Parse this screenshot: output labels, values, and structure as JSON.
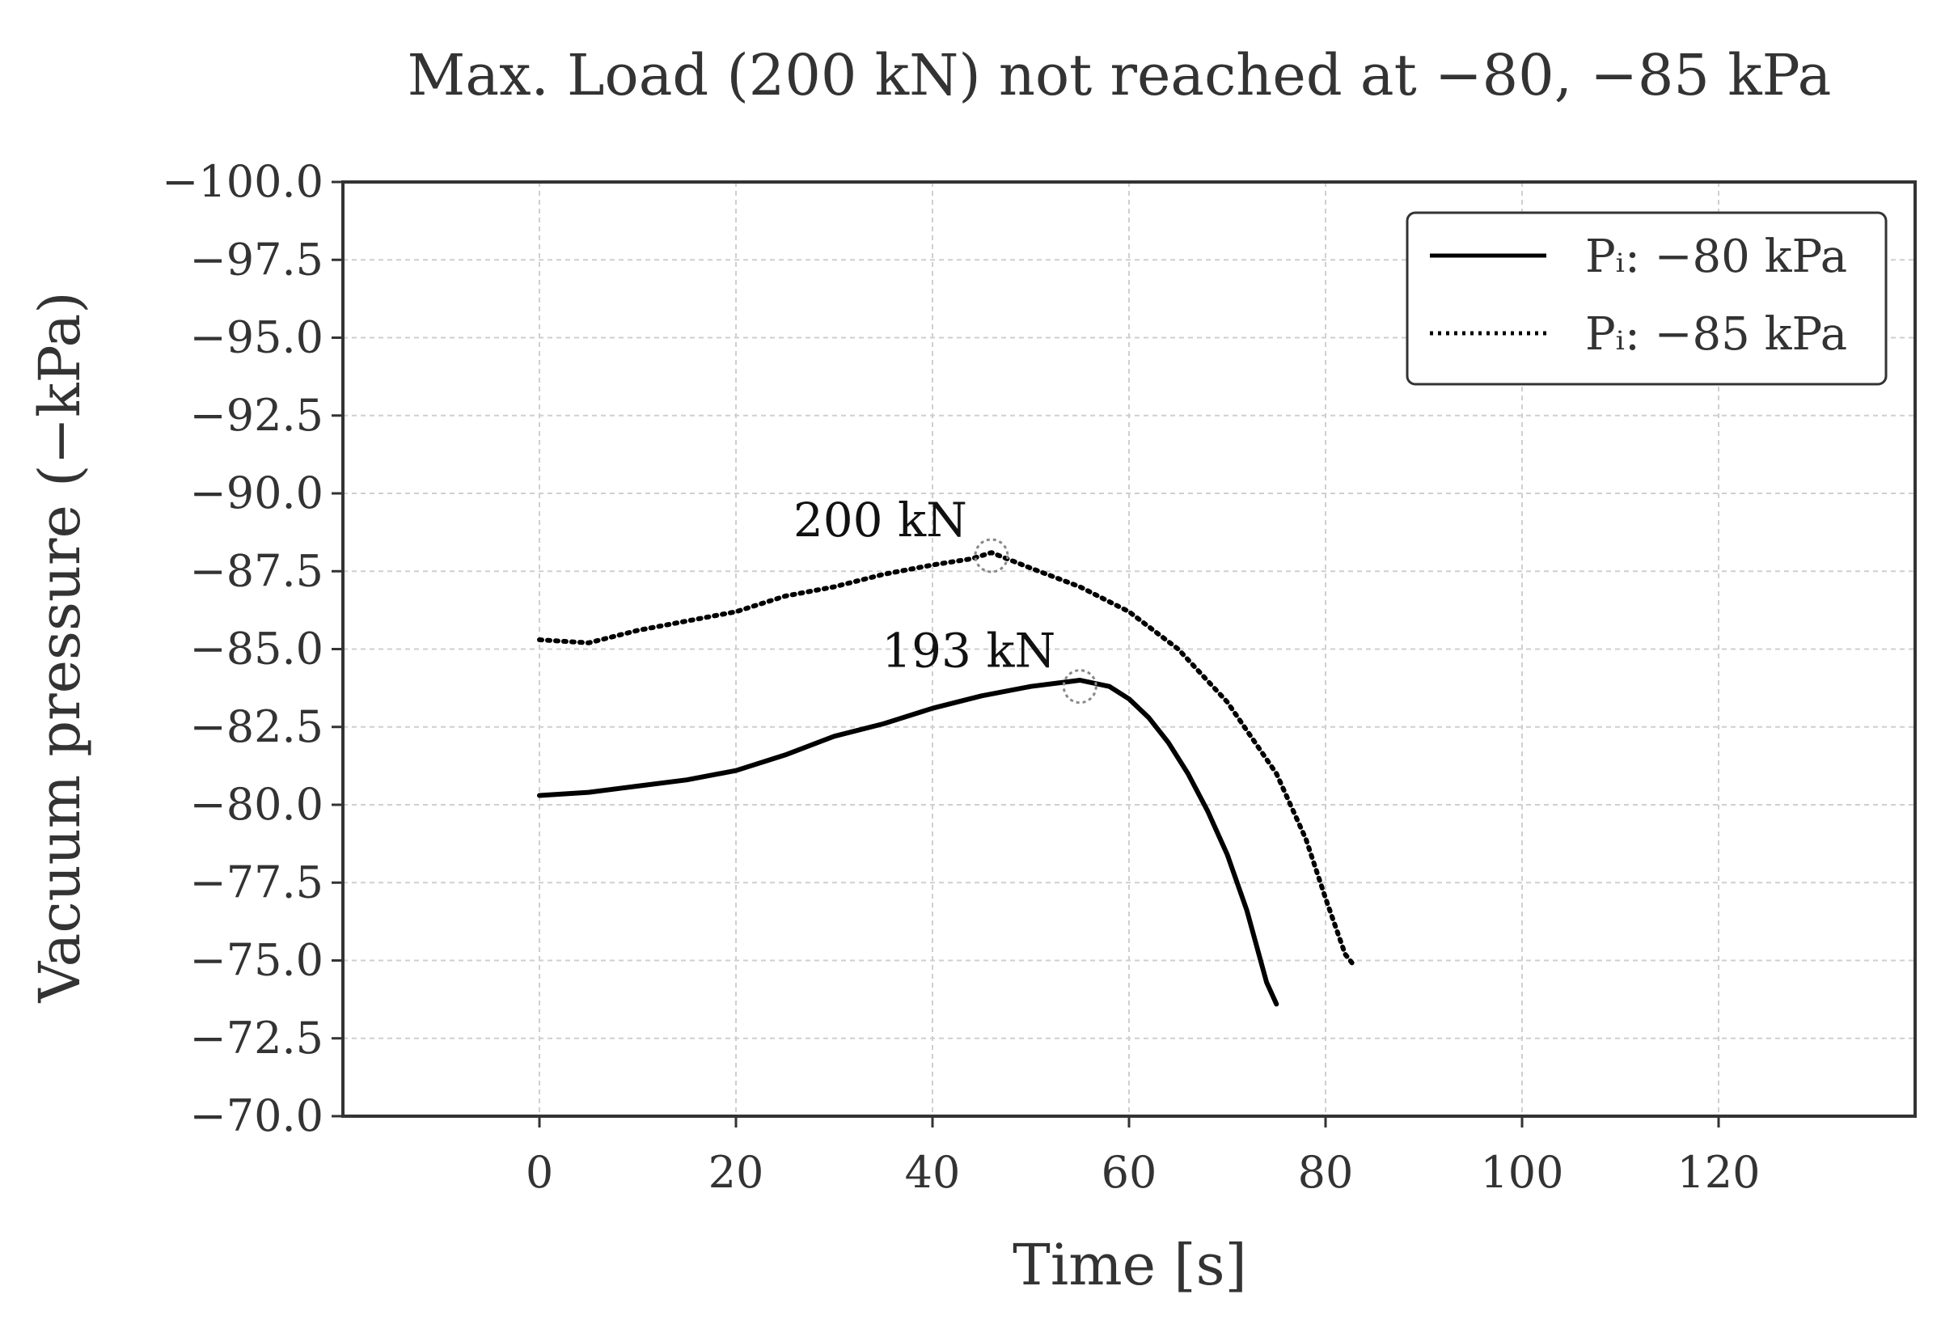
{
  "chart_data": {
    "type": "line",
    "title": "Max. Load (200 kN) not reached at −80, −85 kPa",
    "xlabel": "Time [s]",
    "ylabel": "Vacuum pressure (−kPa)",
    "xlim": [
      -20,
      140
    ],
    "ylim": [
      -70,
      -100
    ],
    "y_inverted": true,
    "grid": true,
    "legend_position": "top-right",
    "xticks": [
      0,
      20,
      40,
      60,
      80,
      100,
      120
    ],
    "xtick_labels": [
      "0",
      "20",
      "40",
      "60",
      "80",
      "100",
      "120"
    ],
    "yticks": [
      -100,
      -97.5,
      -95,
      -92.5,
      -90,
      -87.5,
      -85,
      -82.5,
      -80,
      -77.5,
      -75,
      -72.5,
      -70
    ],
    "ytick_labels": [
      "−100.0",
      "−97.5",
      "−95.0",
      "−92.5",
      "−90.0",
      "−87.5",
      "−85.0",
      "−82.5",
      "−80.0",
      "−77.5",
      "−75.0",
      "−72.5",
      "−70.0"
    ],
    "series": [
      {
        "name": "Pᵢ: −80 kPa",
        "style": "solid",
        "color": "#000000",
        "x": [
          0,
          5,
          10,
          15,
          20,
          25,
          30,
          35,
          40,
          45,
          50,
          55,
          58,
          60,
          62,
          64,
          66,
          68,
          70,
          72,
          74,
          75
        ],
        "y": [
          -80.3,
          -80.4,
          -80.6,
          -80.8,
          -81.1,
          -81.6,
          -82.2,
          -82.6,
          -83.1,
          -83.5,
          -83.8,
          -84.0,
          -83.8,
          -83.4,
          -82.8,
          -82.0,
          -81.0,
          -79.8,
          -78.4,
          -76.6,
          -74.3,
          -73.6
        ]
      },
      {
        "name": "Pᵢ: −85 kPa",
        "style": "dotted",
        "color": "#000000",
        "x": [
          0,
          5,
          10,
          15,
          20,
          25,
          30,
          35,
          40,
          44,
          46,
          50,
          55,
          60,
          65,
          70,
          75,
          78,
          80,
          82,
          83
        ],
        "y": [
          -85.3,
          -85.2,
          -85.6,
          -85.9,
          -86.2,
          -86.7,
          -87.0,
          -87.4,
          -87.7,
          -87.9,
          -88.1,
          -87.6,
          -87.0,
          -86.2,
          -85.0,
          -83.3,
          -81.0,
          -78.9,
          -77.0,
          -75.2,
          -74.8
        ]
      }
    ],
    "annotations": [
      {
        "text": "200 kN",
        "x": 46,
        "y": -88.0,
        "marker": "dotted-circle"
      },
      {
        "text": "193 kN",
        "x": 55,
        "y": -83.8,
        "marker": "dotted-circle"
      }
    ]
  }
}
